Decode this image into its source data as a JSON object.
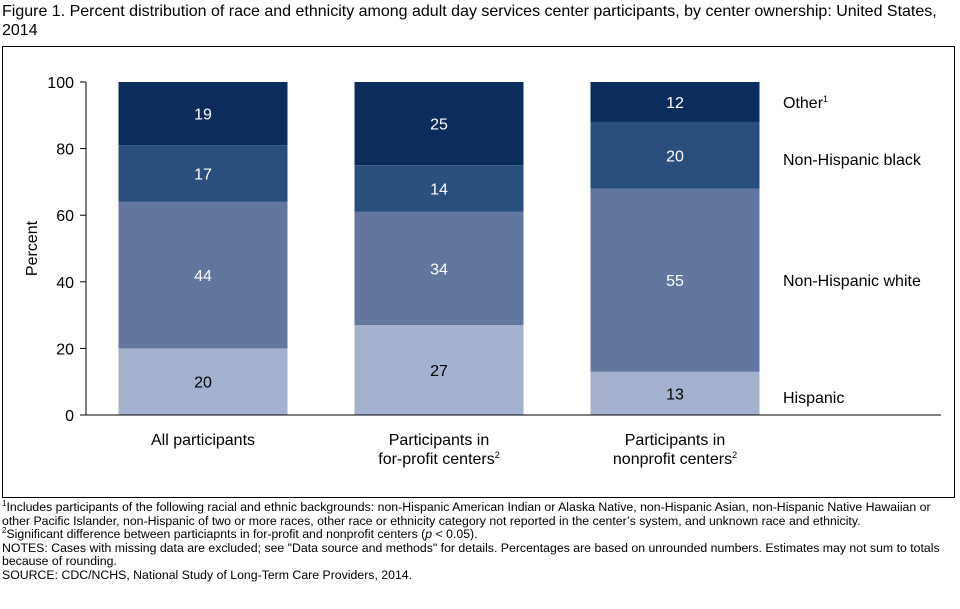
{
  "title": "Figure 1. Percent distribution of race and ethnicity among adult day services center participants, by center ownership: United States, 2014",
  "chart_data": {
    "type": "bar",
    "stacked": true,
    "categories": [
      {
        "text": "All participants",
        "sup": ""
      },
      {
        "text": "Participants in for-profit centers",
        "sup": "2"
      },
      {
        "text": "Participants in nonprofit centers",
        "sup": "2"
      }
    ],
    "series": [
      {
        "name": "Hispanic",
        "sup": "",
        "color": "#a3b1ce",
        "label_color": "#000000",
        "values": [
          20,
          27,
          13
        ]
      },
      {
        "name": "Non-Hispanic white",
        "sup": "",
        "color": "#63769f",
        "label_color": "#ffffff",
        "values": [
          44,
          34,
          55
        ]
      },
      {
        "name": "Non-Hispanic black",
        "sup": "",
        "color": "#294f7f",
        "label_color": "#ffffff",
        "values": [
          17,
          14,
          20
        ]
      },
      {
        "name": "Other",
        "sup": "1",
        "color": "#0b2d5e",
        "label_color": "#ffffff",
        "values": [
          19,
          25,
          12
        ]
      }
    ],
    "ylabel": "Percent",
    "xlabel": "",
    "ylim": [
      0,
      100
    ],
    "yticks": [
      0,
      20,
      40,
      60,
      80,
      100
    ],
    "grid": false,
    "legend_position": "right, beside bars"
  },
  "notes": {
    "footnote1_mark": "1",
    "footnote1": "Includes participants of the following racial and ethnic backgrounds: non-Hispanic American Indian or Alaska Native, non-Hispanic Asian, non-Hispanic Native Hawaiian or other Pacific Islander, non-Hispanic of two or more races, other race or ethnicity category not reported in the center’s system, and unknown race and ethnicity.",
    "footnote2_mark": "2",
    "footnote2_pre": "Significant difference between particiapnts in for-profit and nonprofit centers (",
    "footnote2_p": "p",
    "footnote2_post": " < 0.05).",
    "notes_text": "NOTES: Cases with missing data are excluded; see \"Data source and methods\" for details. Percentages are based on unrounded numbers. Estimates may not sum to totals because of rounding.",
    "source_text": "SOURCE: CDC/NCHS, National Study of Long-Term Care Providers, 2014."
  }
}
